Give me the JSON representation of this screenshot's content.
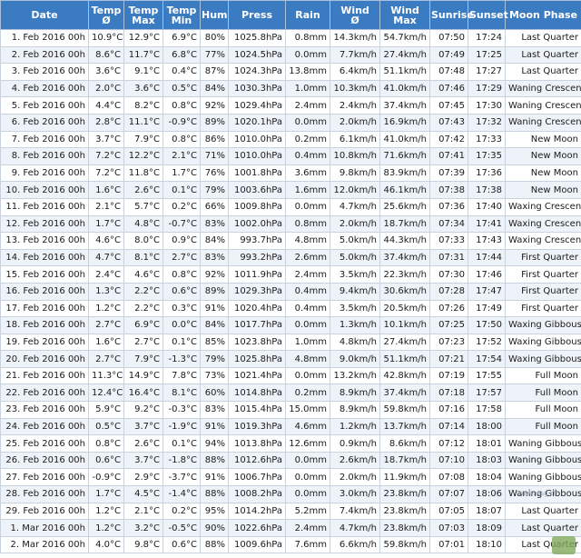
{
  "headers": [
    "Date",
    "Temp\nØ",
    "Temp\nMax",
    "Temp\nMin",
    "Hum",
    "Press",
    "Rain",
    "Wind\nØ",
    "Wind\nMax",
    "Sunrise",
    "Sunset",
    "Moon Phase"
  ],
  "rows": [
    [
      "1. Feb 2016 00h",
      "10.9°C",
      "12.9°C",
      "6.9°C",
      "80%",
      "1025.8hPa",
      "0.8mm",
      "14.3km/h",
      "54.7km/h",
      "07:50",
      "17:24",
      "Last Quarter"
    ],
    [
      "2. Feb 2016 00h",
      "8.6°C",
      "11.7°C",
      "6.8°C",
      "77%",
      "1024.5hPa",
      "0.0mm",
      "7.7km/h",
      "27.4km/h",
      "07:49",
      "17:25",
      "Last Quarter"
    ],
    [
      "3. Feb 2016 00h",
      "3.6°C",
      "9.1°C",
      "0.4°C",
      "87%",
      "1024.3hPa",
      "13.8mm",
      "6.4km/h",
      "51.1km/h",
      "07:48",
      "17:27",
      "Last Quarter"
    ],
    [
      "4. Feb 2016 00h",
      "2.0°C",
      "3.6°C",
      "0.5°C",
      "84%",
      "1030.3hPa",
      "1.0mm",
      "10.3km/h",
      "41.0km/h",
      "07:46",
      "17:29",
      "Waning Crescent"
    ],
    [
      "5. Feb 2016 00h",
      "4.4°C",
      "8.2°C",
      "0.8°C",
      "92%",
      "1029.4hPa",
      "2.4mm",
      "2.4km/h",
      "37.4km/h",
      "07:45",
      "17:30",
      "Waning Crescent"
    ],
    [
      "6. Feb 2016 00h",
      "2.8°C",
      "11.1°C",
      "-0.9°C",
      "89%",
      "1020.1hPa",
      "0.0mm",
      "2.0km/h",
      "16.9km/h",
      "07:43",
      "17:32",
      "Waning Crescent"
    ],
    [
      "7. Feb 2016 00h",
      "3.7°C",
      "7.9°C",
      "0.8°C",
      "86%",
      "1010.0hPa",
      "0.2mm",
      "6.1km/h",
      "41.0km/h",
      "07:42",
      "17:33",
      "New Moon"
    ],
    [
      "8. Feb 2016 00h",
      "7.2°C",
      "12.2°C",
      "2.1°C",
      "71%",
      "1010.0hPa",
      "0.4mm",
      "10.8km/h",
      "71.6km/h",
      "07:41",
      "17:35",
      "New Moon"
    ],
    [
      "9. Feb 2016 00h",
      "7.2°C",
      "11.8°C",
      "1.7°C",
      "76%",
      "1001.8hPa",
      "3.6mm",
      "9.8km/h",
      "83.9km/h",
      "07:39",
      "17:36",
      "New Moon"
    ],
    [
      "10. Feb 2016 00h",
      "1.6°C",
      "2.6°C",
      "0.1°C",
      "79%",
      "1003.6hPa",
      "1.6mm",
      "12.0km/h",
      "46.1km/h",
      "07:38",
      "17:38",
      "New Moon"
    ],
    [
      "11. Feb 2016 00h",
      "2.1°C",
      "5.7°C",
      "0.2°C",
      "66%",
      "1009.8hPa",
      "0.0mm",
      "4.7km/h",
      "25.6km/h",
      "07:36",
      "17:40",
      "Waxing Crescent"
    ],
    [
      "12. Feb 2016 00h",
      "1.7°C",
      "4.8°C",
      "-0.7°C",
      "83%",
      "1002.0hPa",
      "0.8mm",
      "2.0km/h",
      "18.7km/h",
      "07:34",
      "17:41",
      "Waxing Crescent"
    ],
    [
      "13. Feb 2016 00h",
      "4.6°C",
      "8.0°C",
      "0.9°C",
      "84%",
      "993.7hPa",
      "4.8mm",
      "5.0km/h",
      "44.3km/h",
      "07:33",
      "17:43",
      "Waxing Crescent"
    ],
    [
      "14. Feb 2016 00h",
      "4.7°C",
      "8.1°C",
      "2.7°C",
      "83%",
      "993.2hPa",
      "2.6mm",
      "5.0km/h",
      "37.4km/h",
      "07:31",
      "17:44",
      "First Quarter"
    ],
    [
      "15. Feb 2016 00h",
      "2.4°C",
      "4.6°C",
      "0.8°C",
      "92%",
      "1011.9hPa",
      "2.4mm",
      "3.5km/h",
      "22.3km/h",
      "07:30",
      "17:46",
      "First Quarter"
    ],
    [
      "16. Feb 2016 00h",
      "1.3°C",
      "2.2°C",
      "0.6°C",
      "89%",
      "1029.3hPa",
      "0.4mm",
      "9.4km/h",
      "30.6km/h",
      "07:28",
      "17:47",
      "First Quarter"
    ],
    [
      "17. Feb 2016 00h",
      "1.2°C",
      "2.2°C",
      "0.3°C",
      "91%",
      "1020.4hPa",
      "0.4mm",
      "3.5km/h",
      "20.5km/h",
      "07:26",
      "17:49",
      "First Quarter"
    ],
    [
      "18. Feb 2016 00h",
      "2.7°C",
      "6.9°C",
      "0.0°C",
      "84%",
      "1017.7hPa",
      "0.0mm",
      "1.3km/h",
      "10.1km/h",
      "07:25",
      "17:50",
      "Waxing Gibbous"
    ],
    [
      "19. Feb 2016 00h",
      "1.6°C",
      "2.7°C",
      "0.1°C",
      "85%",
      "1023.8hPa",
      "1.0mm",
      "4.8km/h",
      "27.4km/h",
      "07:23",
      "17:52",
      "Waxing Gibbous"
    ],
    [
      "20. Feb 2016 00h",
      "2.7°C",
      "7.9°C",
      "-1.3°C",
      "79%",
      "1025.8hPa",
      "4.8mm",
      "9.0km/h",
      "51.1km/h",
      "07:21",
      "17:54",
      "Waxing Gibbous"
    ],
    [
      "21. Feb 2016 00h",
      "11.3°C",
      "14.9°C",
      "7.8°C",
      "73%",
      "1021.4hPa",
      "0.0mm",
      "13.2km/h",
      "42.8km/h",
      "07:19",
      "17:55",
      "Full Moon"
    ],
    [
      "22. Feb 2016 00h",
      "12.4°C",
      "16.4°C",
      "8.1°C",
      "60%",
      "1014.8hPa",
      "0.2mm",
      "8.9km/h",
      "37.4km/h",
      "07:18",
      "17:57",
      "Full Moon"
    ],
    [
      "23. Feb 2016 00h",
      "5.9°C",
      "9.2°C",
      "-0.3°C",
      "83%",
      "1015.4hPa",
      "15.0mm",
      "8.9km/h",
      "59.8km/h",
      "07:16",
      "17:58",
      "Full Moon"
    ],
    [
      "24. Feb 2016 00h",
      "0.5°C",
      "3.7°C",
      "-1.9°C",
      "91%",
      "1019.3hPa",
      "4.6mm",
      "1.2km/h",
      "13.7km/h",
      "07:14",
      "18:00",
      "Full Moon"
    ],
    [
      "25. Feb 2016 00h",
      "0.8°C",
      "2.6°C",
      "0.1°C",
      "94%",
      "1013.8hPa",
      "12.6mm",
      "0.9km/h",
      "8.6km/h",
      "07:12",
      "18:01",
      "Waning Gibbous"
    ],
    [
      "26. Feb 2016 00h",
      "0.6°C",
      "3.7°C",
      "-1.8°C",
      "88%",
      "1012.6hPa",
      "0.0mm",
      "2.6km/h",
      "18.7km/h",
      "07:10",
      "18:03",
      "Waning Gibbous"
    ],
    [
      "27. Feb 2016 00h",
      "-0.9°C",
      "2.9°C",
      "-3.7°C",
      "91%",
      "1006.7hPa",
      "0.0mm",
      "2.0km/h",
      "11.9km/h",
      "07:08",
      "18:04",
      "Waning Gibbous"
    ],
    [
      "28. Feb 2016 00h",
      "1.7°C",
      "4.5°C",
      "-1.4°C",
      "88%",
      "1008.2hPa",
      "0.0mm",
      "3.0km/h",
      "23.8km/h",
      "07:07",
      "18:06",
      "Waning Gibbous"
    ],
    [
      "29. Feb 2016 00h",
      "1.2°C",
      "2.1°C",
      "0.2°C",
      "95%",
      "1014.2hPa",
      "5.2mm",
      "7.4km/h",
      "23.8km/h",
      "07:05",
      "18:07",
      "Last Quarter"
    ],
    [
      "1. Mar 2016 00h",
      "1.2°C",
      "3.2°C",
      "-0.5°C",
      "90%",
      "1022.6hPa",
      "2.4mm",
      "4.7km/h",
      "23.8km/h",
      "07:03",
      "18:09",
      "Last Quarter"
    ],
    [
      "2. Mar 2016 00h",
      "4.0°C",
      "9.8°C",
      "0.6°C",
      "88%",
      "1009.6hPa",
      "7.6mm",
      "6.6km/h",
      "59.8km/h",
      "07:01",
      "18:10",
      "Last Quarter"
    ]
  ],
  "watermark_text": "www.wsg.ch"
}
